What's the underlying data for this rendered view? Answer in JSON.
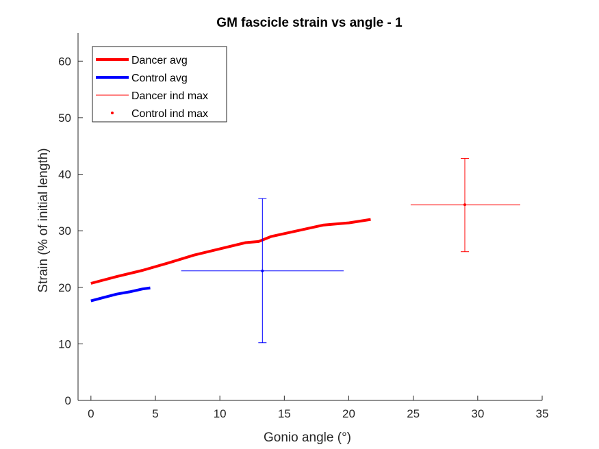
{
  "chart_data": {
    "type": "line",
    "title": "GM fascicle strain vs angle - 1",
    "xlabel": "Gonio angle (°)",
    "ylabel": "Strain (% of initial length)",
    "xlim": [
      -1,
      35
    ],
    "ylim": [
      0,
      65
    ],
    "xticks": [
      0,
      5,
      10,
      15,
      20,
      25,
      30,
      35
    ],
    "yticks": [
      0,
      10,
      20,
      30,
      40,
      50,
      60
    ],
    "grid": false,
    "legend_position": "top-left",
    "series": [
      {
        "name": "Dancer avg",
        "kind": "line",
        "color": "#ff0000",
        "x": [
          0,
          2,
          4,
          6,
          8,
          10,
          12,
          13,
          14,
          16,
          18,
          20,
          21.7
        ],
        "y": [
          20.7,
          21.9,
          23.0,
          24.3,
          25.7,
          26.8,
          27.9,
          28.1,
          29.0,
          30.0,
          31.0,
          31.4,
          32.0
        ]
      },
      {
        "name": "Control avg",
        "kind": "line",
        "color": "#0000ff",
        "x": [
          0,
          1,
          2,
          3,
          4,
          4.6
        ],
        "y": [
          17.6,
          18.2,
          18.8,
          19.2,
          19.7,
          19.9
        ]
      },
      {
        "name": "Dancer ind max",
        "kind": "errorbar",
        "color": "#ff0000",
        "x": 29.0,
        "y": 34.6,
        "x_range": [
          24.8,
          33.3
        ],
        "y_range": [
          26.3,
          42.8
        ]
      },
      {
        "name": "Control ind max",
        "kind": "errorbar",
        "color": "#0000ff",
        "x": 13.3,
        "y": 22.9,
        "x_range": [
          7.0,
          19.6
        ],
        "y_range": [
          10.2,
          35.7
        ]
      }
    ],
    "legend": [
      {
        "label": "Dancer avg",
        "style": "thick-line",
        "color": "#ff0000"
      },
      {
        "label": "Control avg",
        "style": "thick-line",
        "color": "#0000ff"
      },
      {
        "label": "Dancer ind max",
        "style": "thin-line",
        "color": "#ff0000"
      },
      {
        "label": "Control ind max",
        "style": "dot",
        "color": "#ff0000"
      }
    ]
  }
}
